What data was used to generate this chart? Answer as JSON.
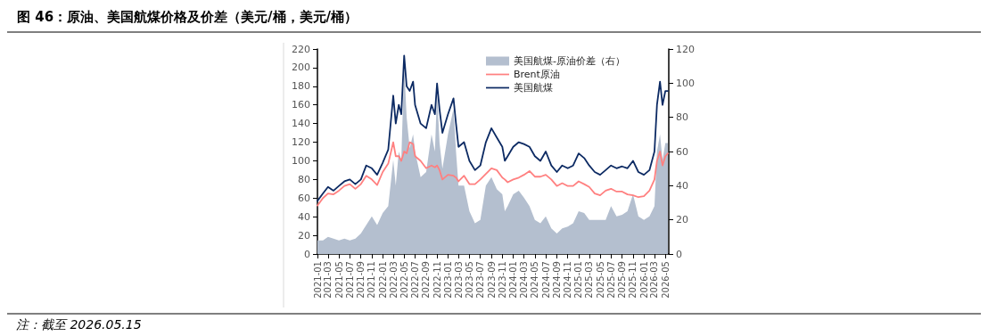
{
  "chart_data": {
    "type": "line",
    "title": "图 46：原油、美国航煤价格及价差（美元/桶，美元/桶）",
    "annotations": [
      "注：截至 2026.05.15"
    ],
    "x": [
      "2021-01",
      "2021-02",
      "2021-03",
      "2021-04",
      "2021-05",
      "2021-06",
      "2021-07",
      "2021-08",
      "2021-09",
      "2021-10",
      "2021-11",
      "2021-12",
      "2022-01",
      "2022-02",
      "2022-03-01",
      "2022-03-15",
      "2022-04-01",
      "2022-04-15",
      "2022-05-01",
      "2022-05-15",
      "2022-06-01",
      "2022-06-20",
      "2022-07",
      "2022-08",
      "2022-09",
      "2022-10-01",
      "2022-10-20",
      "2022-11-01",
      "2022-11-15",
      "2022-12",
      "2023-01",
      "2023-02-01",
      "2023-02-15",
      "2023-03",
      "2023-04",
      "2023-05",
      "2023-06",
      "2023-07",
      "2023-08",
      "2023-09",
      "2023-10",
      "2023-11-01",
      "2023-11-15",
      "2023-12",
      "2024-01",
      "2024-02",
      "2024-03",
      "2024-04",
      "2024-05",
      "2024-06",
      "2024-07",
      "2024-08",
      "2024-09",
      "2024-10",
      "2024-11",
      "2024-12",
      "2025-01",
      "2025-02",
      "2025-03",
      "2025-04",
      "2025-05",
      "2025-06",
      "2025-07",
      "2025-08",
      "2025-09",
      "2025-10",
      "2025-11",
      "2025-12",
      "2026-01",
      "2026-02",
      "2026-03-01",
      "2026-03-15",
      "2026-04-01",
      "2026-04-15",
      "2026-05-01",
      "2026-05-15"
    ],
    "series": [
      {
        "name": "美国航煤-原油价差（右）",
        "type": "area",
        "axis": "y2",
        "color": "#b4bfcf",
        "values": [
          8,
          8,
          10,
          9,
          8,
          9,
          8,
          9,
          12,
          17,
          22,
          17,
          24,
          28,
          55,
          40,
          60,
          55,
          110,
          80,
          62,
          70,
          60,
          45,
          48,
          70,
          60,
          95,
          65,
          50,
          70,
          85,
          60,
          40,
          40,
          25,
          18,
          20,
          40,
          45,
          38,
          35,
          25,
          28,
          35,
          37,
          33,
          28,
          20,
          18,
          22,
          15,
          12,
          15,
          16,
          18,
          25,
          24,
          20,
          20,
          20,
          20,
          28,
          22,
          23,
          25,
          35,
          22,
          20,
          22,
          28,
          60,
          70,
          55,
          65,
          65
        ]
      },
      {
        "name": "Brent原油",
        "color": "#ff8080",
        "values": [
          52,
          60,
          65,
          64,
          68,
          73,
          75,
          70,
          75,
          84,
          80,
          74,
          88,
          97,
          120,
          105,
          105,
          100,
          110,
          108,
          120,
          118,
          105,
          100,
          92,
          95,
          93,
          95,
          90,
          80,
          85,
          84,
          82,
          78,
          84,
          75,
          75,
          80,
          86,
          92,
          90,
          82,
          80,
          77,
          80,
          82,
          85,
          89,
          83,
          83,
          85,
          80,
          73,
          76,
          73,
          73,
          78,
          75,
          72,
          65,
          63,
          68,
          70,
          67,
          67,
          64,
          63,
          61,
          62,
          68,
          80,
          100,
          110,
          95,
          105,
          108
        ]
      },
      {
        "name": "美国航煤",
        "color": "#0c2a63",
        "values": [
          57,
          65,
          72,
          68,
          73,
          78,
          80,
          75,
          80,
          95,
          92,
          85,
          98,
          112,
          170,
          140,
          160,
          150,
          213,
          180,
          175,
          185,
          160,
          140,
          135,
          160,
          150,
          183,
          155,
          130,
          150,
          167,
          140,
          115,
          120,
          100,
          90,
          95,
          120,
          135,
          125,
          115,
          100,
          105,
          115,
          120,
          118,
          115,
          105,
          100,
          110,
          95,
          88,
          95,
          92,
          95,
          108,
          103,
          95,
          88,
          85,
          90,
          95,
          92,
          94,
          92,
          100,
          88,
          85,
          90,
          110,
          160,
          185,
          160,
          175,
          175
        ]
      }
    ],
    "xlim": [
      "2021-01-01",
      "2026-05-20"
    ],
    "xticks": [
      "2021-01",
      "2021-03",
      "2021-05",
      "2021-07",
      "2021-09",
      "2021-11",
      "2022-01",
      "2022-03",
      "2022-05",
      "2022-07",
      "2022-09",
      "2022-11",
      "2023-01",
      "2023-03",
      "2023-05",
      "2023-07",
      "2023-09",
      "2023-11",
      "2024-01",
      "2024-03",
      "2024-05",
      "2024-07",
      "2024-09",
      "2024-11",
      "2025-01",
      "2025-03",
      "2025-05",
      "2025-07",
      "2025-09",
      "2025-11",
      "2026-01",
      "2026-03",
      "2026-05"
    ],
    "ylim": [
      0,
      220
    ],
    "yticks": [
      0,
      20,
      40,
      60,
      80,
      100,
      120,
      140,
      160,
      180,
      200,
      220
    ],
    "y2lim": [
      0,
      120
    ],
    "y2ticks": [
      0,
      20,
      40,
      60,
      80,
      100,
      120
    ],
    "grid": false,
    "legend": "top",
    "marker": "none",
    "line_style": "solid"
  }
}
